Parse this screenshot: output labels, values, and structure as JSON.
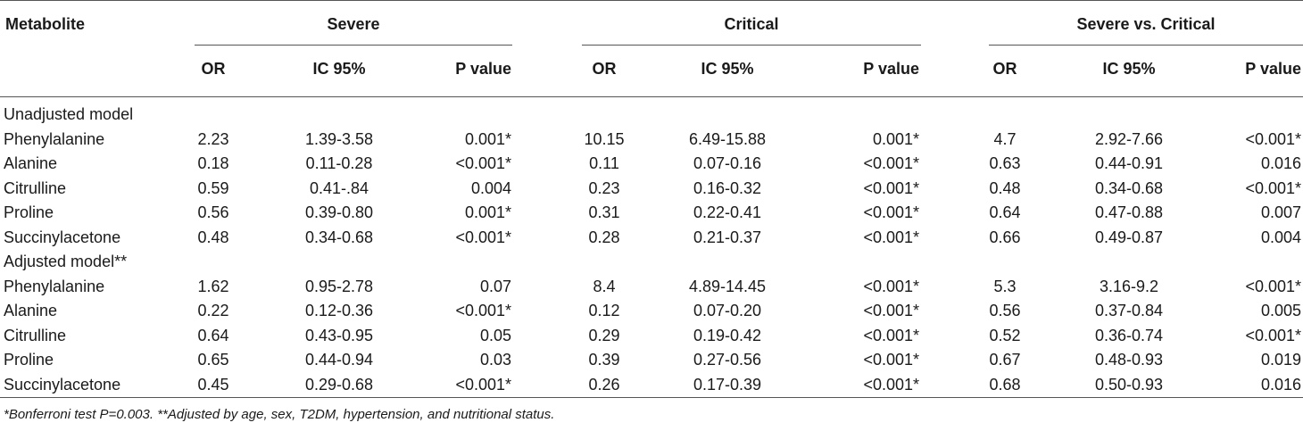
{
  "table": {
    "header": {
      "metabolite": "Metabolite",
      "groups": [
        "Severe",
        "Critical",
        "Severe vs. Critical"
      ],
      "subcols": [
        "OR",
        "IC 95%",
        "P value"
      ]
    },
    "sections": [
      {
        "label": "Unadjusted model",
        "rows": [
          {
            "name": "Phenylalanine",
            "cells": [
              "2.23",
              "1.39-3.58",
              "0.001*",
              "10.15",
              "6.49-15.88",
              "0.001*",
              "4.7",
              "2.92-7.66",
              "<0.001*"
            ]
          },
          {
            "name": "Alanine",
            "cells": [
              "0.18",
              "0.11-0.28",
              "<0.001*",
              "0.11",
              "0.07-0.16",
              "<0.001*",
              "0.63",
              "0.44-0.91",
              "0.016"
            ]
          },
          {
            "name": "Citrulline",
            "cells": [
              "0.59",
              "0.41-.84",
              "0.004",
              "0.23",
              "0.16-0.32",
              "<0.001*",
              "0.48",
              "0.34-0.68",
              "<0.001*"
            ]
          },
          {
            "name": "Proline",
            "cells": [
              "0.56",
              "0.39-0.80",
              "0.001*",
              "0.31",
              "0.22-0.41",
              "<0.001*",
              "0.64",
              "0.47-0.88",
              "0.007"
            ]
          },
          {
            "name": "Succinylacetone",
            "cells": [
              "0.48",
              "0.34-0.68",
              "<0.001*",
              "0.28",
              "0.21-0.37",
              "<0.001*",
              "0.66",
              "0.49-0.87",
              "0.004"
            ]
          }
        ]
      },
      {
        "label": "Adjusted model**",
        "rows": [
          {
            "name": "Phenylalanine",
            "cells": [
              "1.62",
              "0.95-2.78",
              "0.07",
              "8.4",
              "4.89-14.45",
              "<0.001*",
              "5.3",
              "3.16-9.2",
              "<0.001*"
            ]
          },
          {
            "name": "Alanine",
            "cells": [
              "0.22",
              "0.12-0.36",
              "<0.001*",
              "0.12",
              "0.07-0.20",
              "<0.001*",
              "0.56",
              "0.37-0.84",
              "0.005"
            ]
          },
          {
            "name": "Citrulline",
            "cells": [
              "0.64",
              "0.43-0.95",
              "0.05",
              "0.29",
              "0.19-0.42",
              "<0.001*",
              "0.52",
              "0.36-0.74",
              "<0.001*"
            ]
          },
          {
            "name": "Proline",
            "cells": [
              "0.65",
              "0.44-0.94",
              "0.03",
              "0.39",
              "0.27-0.56",
              "<0.001*",
              "0.67",
              "0.48-0.93",
              "0.019"
            ]
          },
          {
            "name": "Succinylacetone",
            "cells": [
              "0.45",
              "0.29-0.68",
              "<0.001*",
              "0.26",
              "0.17-0.39",
              "<0.001*",
              "0.68",
              "0.50-0.93",
              "0.016"
            ]
          }
        ]
      }
    ],
    "footnote": "*Bonferroni test P=0.003. **Adjusted by age, sex, T2DM, hypertension, and nutritional status."
  }
}
